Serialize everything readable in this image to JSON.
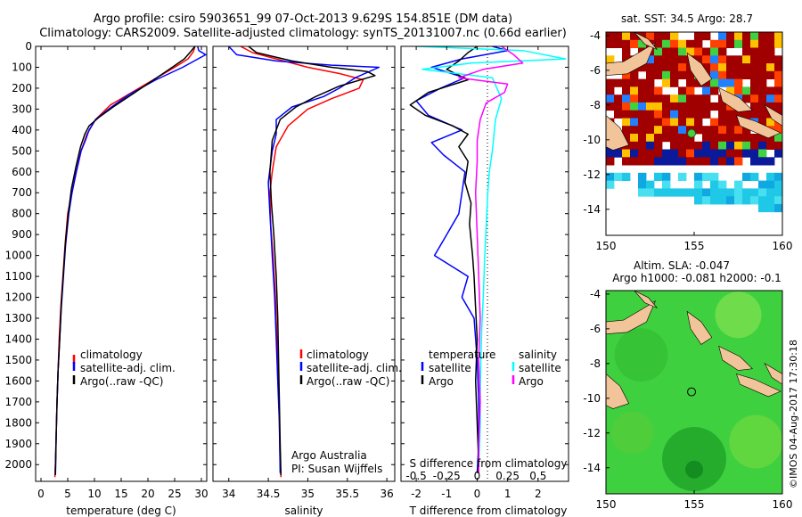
{
  "header": {
    "line1": "Argo profile: csiro 5903651_99 07-Oct-2013 9.629S 154.851E (DM data)",
    "line2": "Climatology: CARS2009. Satellite-adjusted climatology: synTS_20131007.nc (0.66d earlier)"
  },
  "footer": {
    "credit": "©IMOS 04-Aug-2017 17:30:18"
  },
  "colors": {
    "climatology": "#ff0000",
    "satellite": "#0000ff",
    "argo": "#000000",
    "argo_salinity": "#ff00ff",
    "satellite_salinity": "#00ffff",
    "land": "#f2c49a",
    "sst_hot": "#a00000",
    "sla_green": "#3fd03f"
  },
  "chart_data": [
    {
      "type": "line",
      "name": "temperature",
      "xlabel": "temperature (deg C)",
      "ylabel": "",
      "xlim": [
        -1,
        31
      ],
      "ylim": [
        2080,
        0
      ],
      "xticks": [
        0,
        5,
        10,
        15,
        20,
        25,
        30
      ],
      "xtick_labels": [
        "0",
        "5",
        "10",
        "15",
        "20",
        "25",
        "30"
      ],
      "yticks": [
        0,
        100,
        200,
        300,
        400,
        500,
        600,
        700,
        800,
        900,
        1000,
        1100,
        1200,
        1300,
        1400,
        1500,
        1600,
        1700,
        1800,
        1900,
        2000
      ],
      "ytick_labels": [
        "0",
        "100",
        "200",
        "300",
        "400",
        "500",
        "600",
        "700",
        "800",
        "900",
        "1000",
        "1100",
        "1200",
        "1300",
        "1400",
        "1500",
        "1600",
        "1700",
        "1800",
        "1900",
        "2000"
      ],
      "legend": [
        "climatology",
        "satellite-adj. clim.",
        "Argo(..raw -QC)"
      ],
      "series": [
        {
          "name": "climatology",
          "color": "#ff0000",
          "x": [
            28.8,
            28.5,
            27.5,
            25.0,
            21.0,
            17.0,
            13.0,
            10.2,
            8.6,
            7.5,
            6.6,
            5.8,
            5.0,
            4.5,
            4.1,
            3.7,
            3.4,
            3.2,
            3.0,
            2.9,
            2.8,
            2.7,
            2.65,
            2.6
          ],
          "y": [
            0,
            25,
            60,
            100,
            160,
            220,
            280,
            350,
            420,
            500,
            600,
            700,
            800,
            950,
            1100,
            1250,
            1400,
            1550,
            1700,
            1800,
            1900,
            2000,
            2030,
            2060
          ]
        },
        {
          "name": "satellite-adj. clim.",
          "color": "#0000ff",
          "x": [
            29.3,
            29.5,
            30.8,
            26.5,
            21.5,
            16.5,
            13.2,
            10.2,
            9.0,
            8.3,
            7.5,
            6.6,
            5.8,
            5.2,
            4.6,
            4.2,
            3.8,
            3.5,
            3.2,
            3.0,
            2.9,
            2.8,
            2.7,
            2.65
          ],
          "y": [
            0,
            20,
            40,
            100,
            160,
            230,
            290,
            350,
            400,
            450,
            500,
            600,
            700,
            800,
            950,
            1100,
            1250,
            1400,
            1550,
            1700,
            1800,
            1900,
            2000,
            2040
          ]
        },
        {
          "name": "Argo",
          "color": "#000000",
          "x": [
            28.8,
            28.0,
            26.8,
            24.0,
            20.5,
            17.0,
            13.5,
            10.8,
            9.0,
            8.2,
            7.4,
            6.5,
            5.7,
            5.1,
            4.6,
            4.2,
            3.8,
            3.5,
            3.2,
            3.0,
            2.85,
            2.75,
            2.7
          ],
          "y": [
            0,
            25,
            60,
            110,
            170,
            230,
            290,
            340,
            380,
            420,
            480,
            580,
            680,
            800,
            930,
            1080,
            1230,
            1400,
            1550,
            1700,
            1850,
            2000,
            2050
          ]
        }
      ]
    },
    {
      "type": "line",
      "name": "salinity",
      "xlabel": "salinity",
      "xlim": [
        33.8,
        36.1
      ],
      "ylim": [
        2080,
        0
      ],
      "xticks": [
        34,
        34.5,
        35,
        35.5,
        36
      ],
      "xtick_labels": [
        "34",
        "34.5",
        "35",
        "35.5",
        "36"
      ],
      "legend": [
        "climatology",
        "satellite-adj. clim.",
        "Argo(..raw -QC)"
      ],
      "credit_lines": [
        "Argo Australia",
        "PI: Susan Wijffels"
      ],
      "series": [
        {
          "name": "climatology",
          "color": "#ff0000",
          "x": [
            34.15,
            34.3,
            34.6,
            35.0,
            35.4,
            35.7,
            35.65,
            35.3,
            35.0,
            34.75,
            34.6,
            34.55,
            34.52,
            34.53,
            34.56,
            34.59,
            34.61,
            34.63,
            34.64,
            34.65,
            34.66
          ],
          "y": [
            0,
            30,
            60,
            100,
            130,
            160,
            200,
            250,
            300,
            380,
            480,
            600,
            700,
            850,
            1000,
            1200,
            1400,
            1600,
            1800,
            2000,
            2060
          ]
        },
        {
          "name": "satellite-adj. clim.",
          "color": "#0000ff",
          "x": [
            34.0,
            34.1,
            34.6,
            35.3,
            35.9,
            35.6,
            35.4,
            35.2,
            34.8,
            34.6,
            34.6,
            34.55,
            34.5,
            34.52,
            34.55,
            34.58,
            34.6,
            34.62,
            34.64,
            34.65
          ],
          "y": [
            0,
            40,
            70,
            90,
            100,
            150,
            200,
            240,
            290,
            350,
            420,
            500,
            650,
            800,
            1000,
            1200,
            1400,
            1600,
            1800,
            2040
          ]
        },
        {
          "name": "Argo",
          "color": "#000000",
          "x": [
            34.25,
            34.35,
            34.8,
            35.3,
            35.75,
            35.85,
            35.4,
            35.1,
            34.85,
            34.65,
            34.55,
            34.52,
            34.54,
            34.57,
            34.6,
            34.62,
            34.63,
            34.64,
            34.65,
            34.66
          ],
          "y": [
            0,
            30,
            70,
            100,
            120,
            140,
            190,
            240,
            290,
            350,
            450,
            600,
            750,
            900,
            1100,
            1300,
            1500,
            1700,
            1900,
            2050
          ]
        }
      ]
    },
    {
      "type": "line",
      "name": "differences",
      "xlabel": "T difference from climatology",
      "xlabel_top": "S difference from climatology",
      "xlim": [
        -2.5,
        3
      ],
      "ylim": [
        2080,
        0
      ],
      "xticks": [
        -2,
        -1,
        0,
        1,
        2
      ],
      "xtick_labels": [
        "-2",
        "-1",
        "0",
        "1",
        "2"
      ],
      "sticks": [
        -0.5,
        -0.25,
        0,
        0.25,
        0.5
      ],
      "stick_labels": [
        "-0.5",
        "-0.25",
        "0",
        "0.25",
        "0.5"
      ],
      "legend_left": [
        "temperature",
        "satellite",
        "Argo"
      ],
      "legend_right": [
        "salinity",
        "satellite",
        "Argo"
      ],
      "series": [
        {
          "name": "T satellite",
          "color": "#0000ff",
          "x": [
            0.5,
            1.0,
            -0.5,
            -1.5,
            -0.4,
            -1.2,
            -2.0,
            -1.6,
            -0.5,
            -1.5,
            -1.1,
            -0.4,
            -0.5,
            -0.6,
            -1.0,
            -1.4,
            -0.3,
            -0.5,
            -0.1,
            0.0,
            0.05,
            0.05,
            0.0
          ],
          "y": [
            0,
            20,
            60,
            100,
            150,
            200,
            260,
            330,
            400,
            460,
            520,
            600,
            700,
            800,
            900,
            1000,
            1100,
            1200,
            1300,
            1500,
            1700,
            1900,
            2040
          ]
        },
        {
          "name": "T Argo",
          "color": "#000000",
          "x": [
            0.0,
            -0.3,
            -0.6,
            -1.0,
            -0.3,
            -1.6,
            -2.2,
            -1.7,
            -0.8,
            -0.3,
            -0.6,
            -0.3,
            -0.4,
            -0.2,
            -0.25,
            -0.15,
            -0.1,
            -0.05,
            0.0,
            -0.05,
            0.0,
            0.05,
            0.0
          ],
          "y": [
            0,
            30,
            70,
            110,
            160,
            220,
            280,
            330,
            380,
            420,
            480,
            550,
            650,
            750,
            850,
            1000,
            1100,
            1250,
            1400,
            1600,
            1800,
            2000,
            2040
          ]
        },
        {
          "name": "S satellite",
          "color": "#00ffff",
          "x": [
            -2.0,
            1.5,
            2.9,
            -0.2,
            -1.8,
            0.5,
            0.8,
            0.6,
            0.5,
            0.4,
            0.35,
            0.3,
            0.25,
            0.2,
            0.15,
            0.12,
            0.1,
            0.1,
            0.08,
            0.05,
            0.05
          ],
          "y": [
            0,
            20,
            60,
            80,
            110,
            150,
            250,
            350,
            500,
            600,
            700,
            850,
            1000,
            1200,
            1350,
            1500,
            1650,
            1800,
            1900,
            2000,
            2040
          ]
        },
        {
          "name": "S Argo",
          "color": "#ff00ff",
          "x": [
            0.8,
            1.2,
            1.5,
            0.2,
            -0.6,
            1.0,
            0.9,
            0.3,
            0.1,
            0.0,
            0.0,
            -0.05,
            0.0,
            0.05,
            0.1,
            0.05,
            0.1,
            0.05,
            0.05
          ],
          "y": [
            0,
            40,
            80,
            110,
            150,
            180,
            220,
            270,
            350,
            450,
            550,
            700,
            900,
            1100,
            1300,
            1500,
            1700,
            1900,
            2040
          ]
        }
      ]
    },
    {
      "type": "heatmap",
      "name": "sst_map",
      "title": "sat. SST: 34.5 Argo: 28.7",
      "xlim": [
        150,
        160
      ],
      "ylim": [
        -15.5,
        -3.8
      ],
      "xticks": [
        150,
        155,
        160
      ],
      "xtick_labels": [
        "150",
        "155",
        "160"
      ],
      "yticks": [
        -4,
        -6,
        -8,
        -10,
        -12,
        -14
      ],
      "ytick_labels": [
        "-4",
        "-6",
        "-8",
        "-10",
        "-12",
        "-14"
      ],
      "profile_position": [
        154.851,
        -9.629
      ]
    },
    {
      "type": "heatmap",
      "name": "sla_map",
      "title": "Altim. SLA: -0.047",
      "subtitle": "Argo h1000: -0.081 h2000: -0.1",
      "xlim": [
        150,
        160
      ],
      "ylim": [
        -15.5,
        -3.8
      ],
      "xticks": [
        150,
        155,
        160
      ],
      "xtick_labels": [
        "150",
        "155",
        "160"
      ],
      "yticks": [
        -4,
        -6,
        -8,
        -10,
        -12,
        -14
      ],
      "ytick_labels": [
        "-4",
        "-6",
        "-8",
        "-10",
        "-12",
        "-14"
      ],
      "profile_position": [
        154.851,
        -9.629
      ]
    }
  ]
}
